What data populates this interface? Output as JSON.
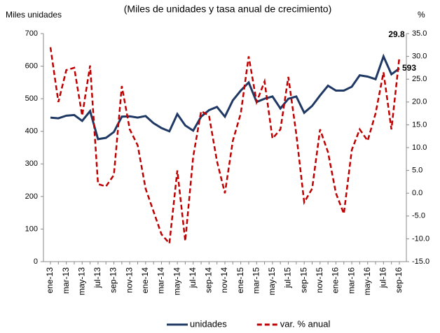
{
  "chart_data": {
    "type": "line",
    "title": "(Miles de unidades y tasa anual de crecimiento)",
    "ylabel": "Miles unidades",
    "y2label": "%",
    "categories": [
      "ene-13",
      null,
      "mar-13",
      null,
      "may-13",
      null,
      "jul-13",
      null,
      "sep-13",
      null,
      "nov-13",
      null,
      "ene-14",
      null,
      "mar-14",
      null,
      "may-14",
      null,
      "jul-14",
      null,
      "sep-14",
      null,
      "nov-14",
      null,
      "ene-15",
      null,
      "mar-15",
      null,
      "may-15",
      null,
      "jul-15",
      null,
      "sep-15",
      null,
      "nov-15",
      null,
      "ene-16",
      null,
      "mar-16",
      null,
      "may-16",
      null,
      "jul-16",
      null,
      "sep-16"
    ],
    "series": [
      {
        "name": "unidades",
        "color": "#1f3864",
        "axis": "y",
        "values": [
          442,
          440,
          448,
          450,
          432,
          462,
          376,
          380,
          398,
          445,
          446,
          442,
          447,
          425,
          410,
          400,
          453,
          418,
          402,
          445,
          465,
          475,
          445,
          495,
          525,
          550,
          490,
          500,
          507,
          470,
          500,
          507,
          457,
          478,
          510,
          540,
          525,
          525,
          537,
          572,
          568,
          560,
          630,
          575,
          593
        ]
      },
      {
        "name": "var. % anual",
        "color": "#c00000",
        "axis": "y2",
        "dashed": true,
        "values": [
          32,
          20,
          27,
          27.5,
          17,
          28,
          2,
          1.5,
          4,
          23.5,
          14,
          10.5,
          1,
          -4,
          -9,
          -11,
          5,
          -10.5,
          8,
          18,
          17,
          7,
          0,
          11.5,
          17.5,
          30,
          20,
          24.5,
          12,
          14,
          25.5,
          13,
          -2,
          1,
          14,
          9,
          0,
          -4.5,
          9.5,
          14,
          11.5,
          17.5,
          26.5,
          14,
          29.8
        ]
      }
    ],
    "ylim": [
      0,
      700
    ],
    "yticks": [
      0,
      100,
      200,
      300,
      400,
      500,
      600,
      700
    ],
    "y2lim": [
      -15,
      35
    ],
    "y2ticks": [
      {
        "value": -15,
        "label": "-15.0"
      },
      {
        "value": -10,
        "label": "-10.0"
      },
      {
        "value": -5,
        "label": "-5.0"
      },
      {
        "value": 0,
        "label": "0.0"
      },
      {
        "value": 5,
        "label": "5.0"
      },
      {
        "value": 10,
        "label": "10.0"
      },
      {
        "value": 15,
        "label": "15.0"
      },
      {
        "value": 20,
        "label": "20.0"
      },
      {
        "value": 25,
        "label": "25.0"
      },
      {
        "value": 30,
        "label": "30.0"
      },
      {
        "value": 35,
        "label": "35.0"
      }
    ],
    "legend": "bottom"
  }
}
